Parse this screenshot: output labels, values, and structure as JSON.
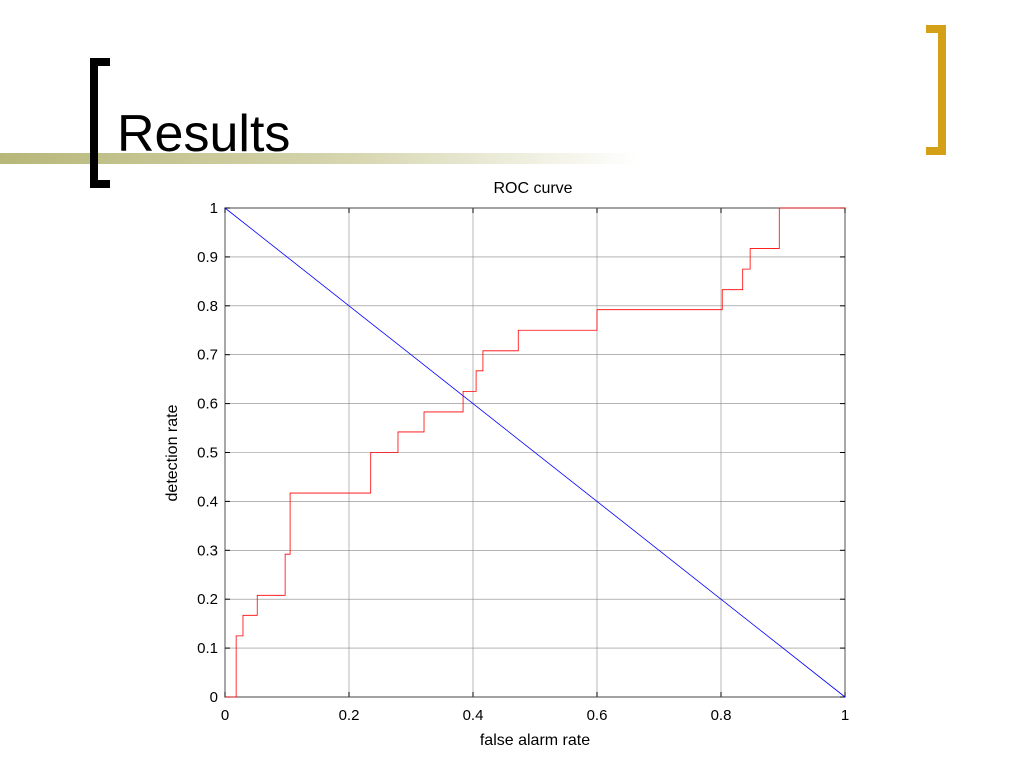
{
  "slide": {
    "title": "Results"
  },
  "chart_data": {
    "type": "line",
    "title": "ROC curve",
    "x_label": "false alarm rate",
    "y_label": "detection rate",
    "xlim": [
      0,
      1
    ],
    "ylim": [
      0,
      1
    ],
    "xticks": [
      0,
      0.2,
      0.4,
      0.6,
      0.8,
      1
    ],
    "yticks": [
      0,
      0.1,
      0.2,
      0.3,
      0.4,
      0.5,
      0.6,
      0.7,
      0.8,
      0.9,
      1
    ],
    "grid": true,
    "series": [
      {
        "color": "#ff0000",
        "x": [
          0,
          0.018,
          0.018,
          0.029,
          0.029,
          0.052,
          0.052,
          0.097,
          0.097,
          0.105,
          0.105,
          0.235,
          0.235,
          0.279,
          0.279,
          0.321,
          0.321,
          0.384,
          0.384,
          0.405,
          0.405,
          0.416,
          0.416,
          0.473,
          0.473,
          0.6,
          0.6,
          0.802,
          0.802,
          0.835,
          0.835,
          0.847,
          0.847,
          0.894,
          0.894,
          1
        ],
        "values": [
          0,
          0,
          0.125,
          0.125,
          0.167,
          0.167,
          0.208,
          0.208,
          0.292,
          0.292,
          0.417,
          0.417,
          0.5,
          0.5,
          0.542,
          0.542,
          0.583,
          0.583,
          0.625,
          0.625,
          0.667,
          0.667,
          0.708,
          0.708,
          0.75,
          0.75,
          0.792,
          0.792,
          0.833,
          0.833,
          0.875,
          0.875,
          0.917,
          0.917,
          1,
          1
        ]
      },
      {
        "color": "#0000ff",
        "x": [
          0,
          1
        ],
        "values": [
          1,
          0
        ]
      }
    ]
  }
}
